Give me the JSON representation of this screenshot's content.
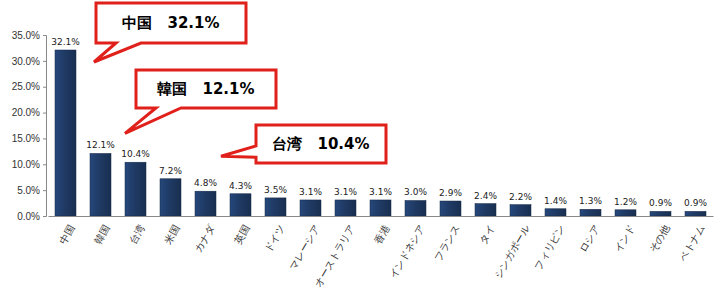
{
  "chart_data": {
    "type": "bar",
    "categories": [
      "中国",
      "韓国",
      "台湾",
      "米国",
      "カナダ",
      "英国",
      "ドイツ",
      "マレーシア",
      "オーストラリア",
      "香港",
      "インドネシア",
      "フランス",
      "タイ",
      "シンガポール",
      "フィリピン",
      "ロシア",
      "インド",
      "その他",
      "ベトナム"
    ],
    "values": [
      32.1,
      12.1,
      10.4,
      7.2,
      4.8,
      4.3,
      3.5,
      3.1,
      3.1,
      3.1,
      3.0,
      2.9,
      2.4,
      2.2,
      1.4,
      1.3,
      1.2,
      0.9,
      0.9
    ],
    "value_labels": [
      "32.1%",
      "12.1%",
      "10.4%",
      "7.2%",
      "4.8%",
      "4.3%",
      "3.5%",
      "3.1%",
      "3.1%",
      "3.1%",
      "3.0%",
      "2.9%",
      "2.4%",
      "2.2%",
      "1.4%",
      "1.3%",
      "1.2%",
      "0.9%",
      "0.9%"
    ],
    "color": "#1f3a64",
    "ylim": [
      0,
      35
    ],
    "yticks": [
      {
        "value": 0,
        "label": "0.0%"
      },
      {
        "value": 5,
        "label": "5.0%"
      },
      {
        "value": 10,
        "label": "10.0%"
      },
      {
        "value": 15,
        "label": "15.0%"
      },
      {
        "value": 20,
        "label": "20.0%"
      },
      {
        "value": 25,
        "label": "25.0%"
      },
      {
        "value": 30,
        "label": "30.0%"
      },
      {
        "value": 35,
        "label": "35.0%"
      }
    ],
    "grid": false,
    "data_labels": true,
    "annotations": [
      "中国　32.1%",
      "韓国　12.1%",
      "台湾　10.4%"
    ]
  }
}
